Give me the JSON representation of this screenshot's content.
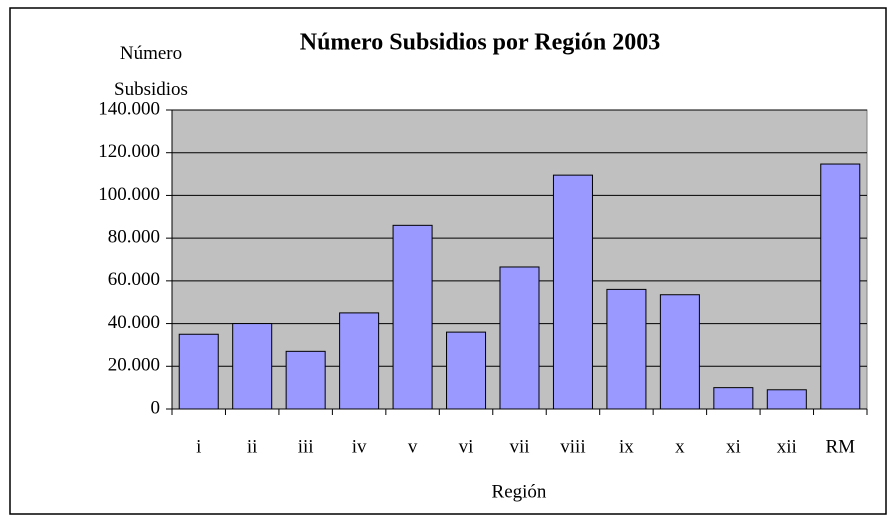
{
  "chart_data": {
    "type": "bar",
    "title": "Número Subsidios por Región 2003",
    "y_label": "Número Subsidios",
    "x_label": "Región",
    "categories": [
      "i",
      "ii",
      "iii",
      "iv",
      "v",
      "vi",
      "vii",
      "viii",
      "ix",
      "x",
      "xi",
      "xii",
      "RM"
    ],
    "values": [
      35000,
      40000,
      27000,
      45000,
      86000,
      36000,
      66500,
      109500,
      56000,
      53500,
      10000,
      9000,
      114700
    ],
    "color": "#9999ff",
    "plot_color": "#c0c0c0",
    "ylim": [
      0,
      140000
    ],
    "yticks": [
      0,
      {
        "value": 20000,
        "label": "20.000"
      },
      {
        "value": 40000,
        "label": "40.000"
      },
      {
        "value": 60000,
        "label": "60.000"
      },
      {
        "value": 80000,
        "label": "80.000"
      },
      {
        "value": 100000,
        "label": "100.000"
      },
      {
        "value": 120000,
        "label": "120.000"
      },
      {
        "value": 140000,
        "label": "140.000"
      }
    ],
    "grid": true
  }
}
